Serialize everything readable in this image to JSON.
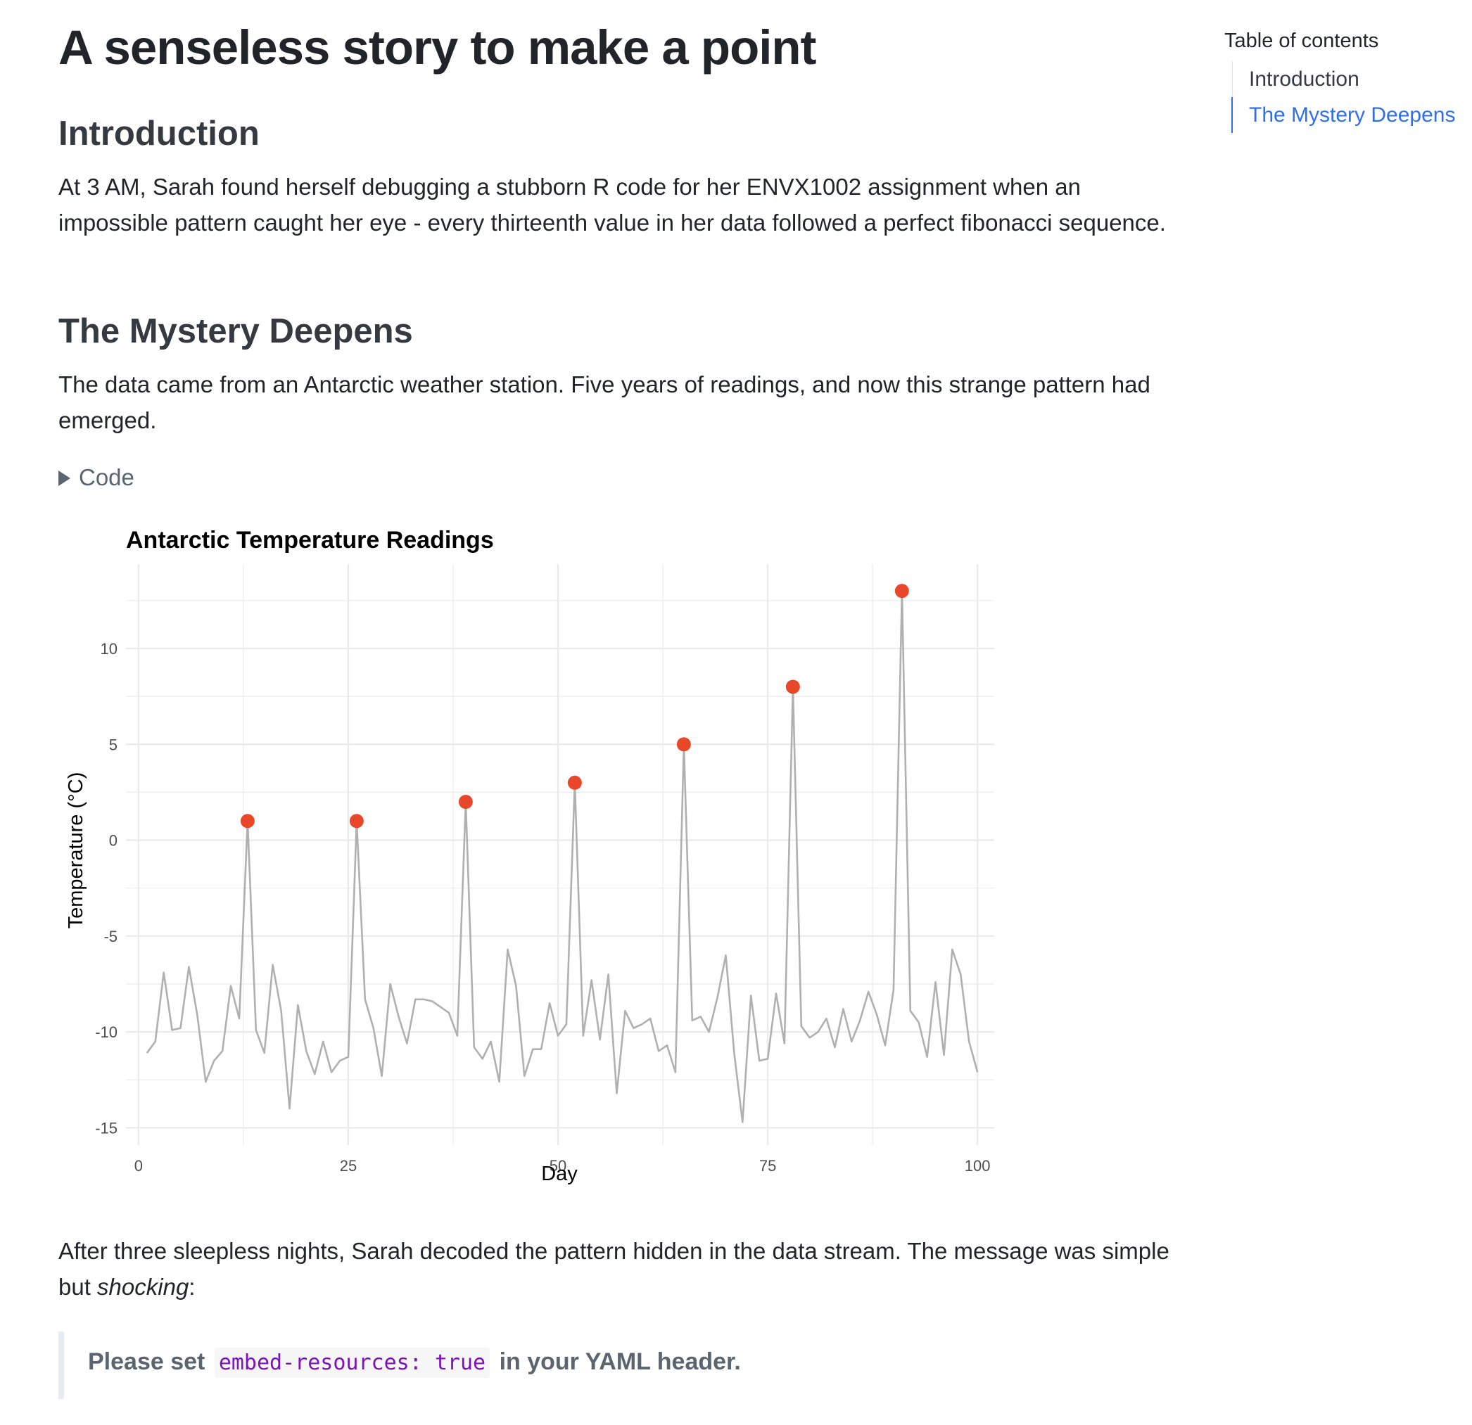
{
  "title": "A senseless story to make a point",
  "sections": [
    {
      "heading": "Introduction",
      "text": "At 3 AM, Sarah found herself debugging a stubborn R code for her ENVX1002 assignment when an impossible pattern caught her eye - every thirteenth value in her data followed a perfect fibonacci sequence."
    },
    {
      "heading": "The Mystery Deepens",
      "text": "The data came from an Antarctic weather station. Five years of readings, and now this strange pattern had emerged."
    }
  ],
  "code_toggle_label": "Code",
  "after_chart": {
    "text_before": "After three sleepless nights, Sarah decoded the pattern hidden in the data stream. The message was simple but ",
    "emphasis": "shocking",
    "text_after": ":"
  },
  "blockquote": {
    "text_before": "Please set",
    "code": "embed-resources: true",
    "text_after": "in your YAML header."
  },
  "toc": {
    "title": "Table of contents",
    "items": [
      {
        "label": "Introduction",
        "active": false
      },
      {
        "label": "The Mystery Deepens",
        "active": true
      }
    ]
  },
  "colors": {
    "accent": "#2f6feb",
    "line": "#b0b0b0",
    "highlight": "#e8472a",
    "grid": "#ebebeb"
  },
  "chart_data": {
    "type": "line",
    "title": "Antarctic Temperature Readings",
    "xlabel": "Day",
    "ylabel": "Temperature (°C)",
    "xlim": [
      -1.5,
      102
    ],
    "ylim": [
      -15.9,
      14.4
    ],
    "x_ticks": [
      0,
      25,
      50,
      75,
      100
    ],
    "y_ticks": [
      -15,
      -10,
      -5,
      0,
      5,
      10
    ],
    "grid": true,
    "series": [
      {
        "x": [
          1,
          2,
          3,
          4,
          5,
          6,
          7,
          8,
          9,
          10,
          11,
          12,
          13,
          14,
          15,
          16,
          17,
          18,
          19,
          20,
          21,
          22,
          23,
          24,
          25,
          26,
          27,
          28,
          29,
          30,
          31,
          32,
          33,
          34,
          35,
          36,
          37,
          38,
          39,
          40,
          41,
          42,
          43,
          44,
          45,
          46,
          47,
          48,
          49,
          50,
          51,
          52,
          53,
          54,
          55,
          56,
          57,
          58,
          59,
          60,
          61,
          62,
          63,
          64,
          65,
          66,
          67,
          68,
          69,
          70,
          71,
          72,
          73,
          74,
          75,
          76,
          77,
          78,
          79,
          80,
          81,
          82,
          83,
          84,
          85,
          86,
          87,
          88,
          89,
          90,
          91,
          92,
          93,
          94,
          95,
          96,
          97,
          98,
          99,
          100
        ],
        "values": [
          -11.1,
          -10.5,
          -6.9,
          -9.9,
          -9.8,
          -6.6,
          -9.1,
          -12.6,
          -11.5,
          -11.0,
          -7.6,
          -9.3,
          1.0,
          -9.9,
          -11.1,
          -6.5,
          -8.9,
          -14.0,
          -8.6,
          -11.0,
          -12.2,
          -10.5,
          -12.1,
          -11.5,
          -11.3,
          1.0,
          -8.3,
          -9.8,
          -12.3,
          -7.5,
          -9.2,
          -10.6,
          -8.3,
          -8.3,
          -8.4,
          -8.7,
          -9.0,
          -10.2,
          2.0,
          -10.8,
          -11.4,
          -10.5,
          -12.6,
          -5.7,
          -7.6,
          -12.3,
          -10.9,
          -10.9,
          -8.5,
          -10.2,
          -9.6,
          3.0,
          -10.2,
          -7.3,
          -10.4,
          -7.0,
          -13.2,
          -8.9,
          -9.8,
          -9.6,
          -9.3,
          -11.0,
          -10.7,
          -12.1,
          5.0,
          -9.4,
          -9.2,
          -10.0,
          -8.2,
          -6.0,
          -11.1,
          -14.7,
          -8.1,
          -11.5,
          -11.4,
          -8.0,
          -10.6,
          8.0,
          -9.7,
          -10.3,
          -10.0,
          -9.3,
          -10.8,
          -8.8,
          -10.5,
          -9.4,
          -7.9,
          -9.1,
          -10.7,
          -7.8,
          13.0,
          -8.9,
          -9.5,
          -11.3,
          -7.4,
          -11.2,
          -5.7,
          -7.0,
          -10.5,
          -12.1
        ]
      }
    ],
    "highlight_points": {
      "x": [
        13,
        26,
        39,
        52,
        65,
        78,
        91
      ],
      "values": [
        1,
        1,
        2,
        3,
        5,
        8,
        13
      ]
    }
  }
}
